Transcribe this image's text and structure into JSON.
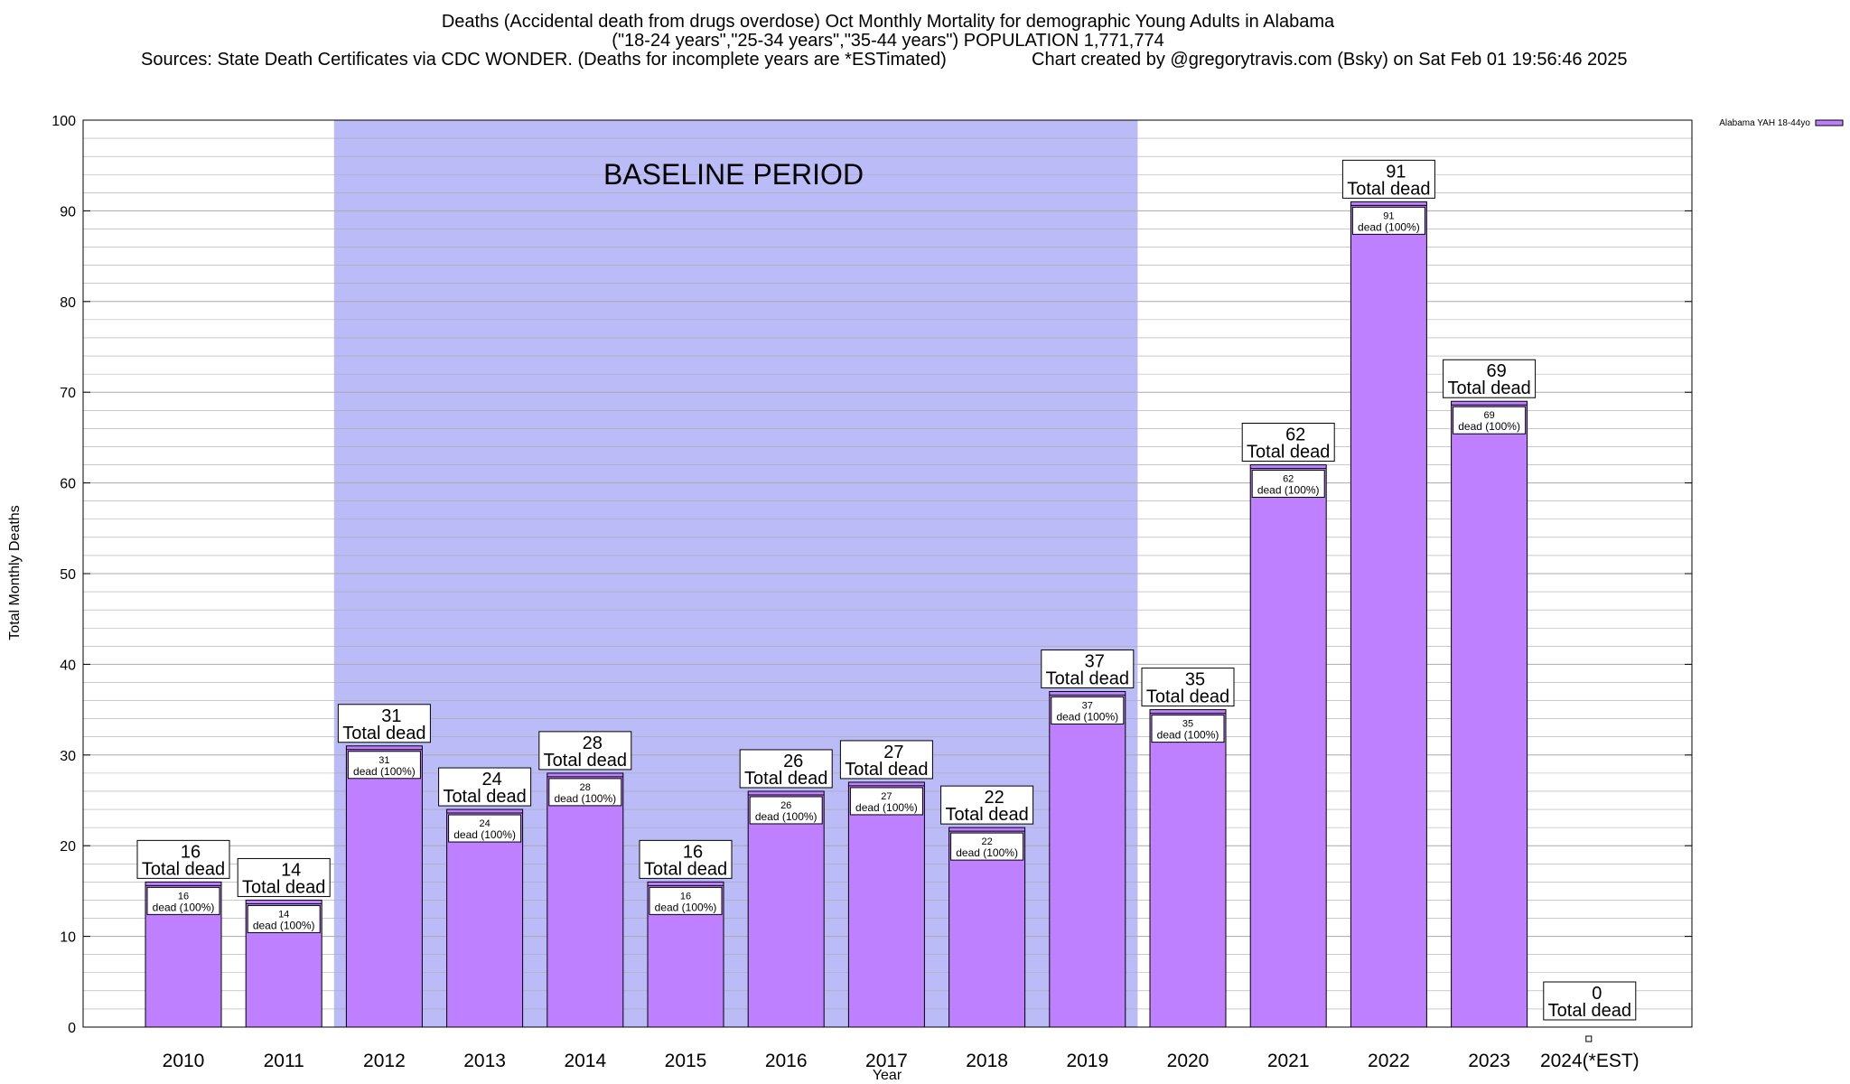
{
  "title": {
    "line1": "Deaths (Accidental death from drugs overdose) Oct Monthly Mortality for demographic Young Adults in Alabama",
    "line2": "(\"18-24 years\",\"25-34 years\",\"35-44 years\") POPULATION 1,771,774",
    "line3_source": "Sources: State Death Certificates via CDC WONDER. (Deaths for incomplete years are *ESTimated)",
    "line3_credit": "Chart created by @gregorytravis.com (Bsky) on Sat Feb 01 19:56:46 2025"
  },
  "chart_data": {
    "type": "bar",
    "categories": [
      "2010",
      "2011",
      "2012",
      "2013",
      "2014",
      "2015",
      "2016",
      "2017",
      "2018",
      "2019",
      "2020",
      "2021",
      "2022",
      "2023",
      "2024(*EST)"
    ],
    "series": [
      {
        "name": "Alabama YAH 18-44yo",
        "values": [
          16,
          14,
          31,
          24,
          28,
          16,
          26,
          27,
          22,
          37,
          35,
          62,
          91,
          69,
          0
        ]
      }
    ],
    "xlabel": "Year",
    "ylabel": "Total Monthly Deaths",
    "ylim": [
      0,
      100
    ],
    "yticks": [
      0,
      10,
      20,
      30,
      40,
      50,
      60,
      70,
      80,
      90,
      100
    ],
    "grid": true,
    "legend_position": "top-right",
    "total_label": "Total dead",
    "segment_label": "dead (100%)",
    "baseline_label": "BASELINE PERIOD",
    "baseline_range": [
      "2012",
      "2019"
    ],
    "colors": {
      "bar_fill": "#bf80ff",
      "baseline_shade": "#bbbbf8",
      "grid": "#aaaaaa"
    }
  }
}
